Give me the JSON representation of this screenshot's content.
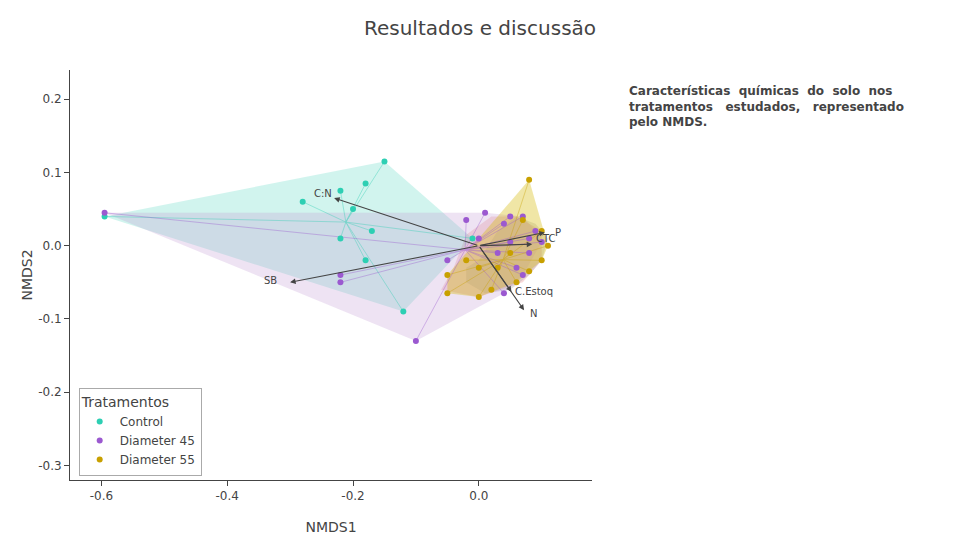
{
  "chart_data": {
    "type": "scatter",
    "title": "Resultados e discussão",
    "annotations": [
      "Características  químicas  do  solo  nos",
      "tratamentos   estudados,   representado",
      "pelo NMDS."
    ],
    "xlabel": "NMDS1",
    "ylabel": "NMDS2",
    "xlim": [
      -0.65,
      0.18
    ],
    "ylim": [
      -0.32,
      0.24
    ],
    "xticks": [
      -0.6,
      -0.4,
      -0.2,
      {
        "value": 0.0,
        "label": "0.0"
      }
    ],
    "yticks": [
      -0.3,
      -0.2,
      -0.1,
      {
        "value": 0.0,
        "label": "0.0"
      },
      0.1,
      0.2
    ],
    "grid": false,
    "legend": "lower left",
    "legend_title": "Tratamentos",
    "series": [
      {
        "name": "Control",
        "color": "#2dcfb3",
        "marker": "circle",
        "x": [
          -0.595,
          -0.01,
          -0.18,
          -0.22,
          -0.15,
          -0.18,
          -0.22,
          -0.28,
          -0.12,
          -0.17,
          -0.2
        ],
        "y": [
          0.04,
          0.01,
          -0.02,
          0.01,
          0.115,
          0.085,
          0.075,
          0.06,
          -0.09,
          0.02,
          0.05
        ],
        "centroid": {
          "x": -0.2113636,
          "y": 0.0322727
        },
        "hull": {
          "color": "#2dcfb3",
          "x": [
            -0.595,
            -0.12,
            -0.01,
            -0.15
          ],
          "y": [
            0.04,
            -0.09,
            0.01,
            0.115
          ]
        }
      },
      {
        "name": "Diameter 45",
        "color": "#9b59d0",
        "marker": "circle",
        "x": [
          -0.595,
          -0.22,
          -0.22,
          -0.1,
          0.04,
          0.06,
          0.08,
          0.09,
          0.1,
          0.08,
          0.05,
          0.03,
          -0.05,
          0.0,
          -0.02,
          0.01,
          0.04,
          0.05,
          0.07,
          0.07
        ],
        "y": [
          0.045,
          -0.04,
          -0.05,
          -0.13,
          -0.065,
          -0.03,
          0.01,
          0.02,
          0.005,
          -0.01,
          0.005,
          -0.01,
          -0.02,
          0.01,
          0.035,
          0.045,
          0.03,
          0.04,
          0.04,
          -0.04
        ],
        "centroid": {
          "x": -0.02175,
          "y": -0.0055
        },
        "hull": {
          "color": "#c39bd3",
          "x": [
            -0.595,
            -0.1,
            0.04,
            0.07,
            0.1,
            0.09,
            0.07,
            0.01
          ],
          "y": [
            0.045,
            -0.13,
            -0.065,
            -0.04,
            0.005,
            0.02,
            0.04,
            0.045
          ]
        }
      },
      {
        "name": "Diameter 55",
        "color": "#c8a000",
        "marker": "circle",
        "x": [
          -0.05,
          0.0,
          0.02,
          0.06,
          0.08,
          0.1,
          0.11,
          0.1,
          0.08,
          0.07,
          0.05,
          0.03,
          0.0,
          -0.02,
          -0.05
        ],
        "y": [
          -0.065,
          -0.07,
          -0.06,
          -0.05,
          -0.035,
          -0.02,
          0.0,
          0.02,
          0.09,
          0.035,
          -0.01,
          -0.03,
          -0.03,
          -0.02,
          -0.04
        ],
        "centroid": {
          "x": 0.0386667,
          "y": -0.019
        },
        "hull": {
          "color": "#d4b800",
          "x": [
            -0.05,
            0.0,
            0.06,
            0.1,
            0.11,
            0.08,
            -0.05
          ],
          "y": [
            -0.065,
            -0.07,
            -0.05,
            -0.02,
            0.0,
            0.09,
            -0.04
          ]
        }
      }
    ],
    "areas": [
      {
        "color": "#f0a0a0",
        "x": [
          -0.06,
          0.0,
          0.07,
          0.1,
          0.1,
          0.06,
          0.02,
          -0.02,
          -0.04,
          -0.06
        ],
        "y": [
          -0.06,
          -0.07,
          -0.05,
          -0.02,
          0.02,
          0.04,
          0.04,
          0.015,
          -0.03,
          -0.06
        ]
      },
      {
        "color": "#999999",
        "x": [
          -0.02,
          0.0,
          0.03,
          0.06,
          0.09,
          0.11,
          0.1,
          0.08,
          0.05,
          0.01,
          -0.02,
          -0.02
        ],
        "y": [
          -0.03,
          -0.02,
          0.02,
          0.04,
          0.03,
          0.01,
          -0.02,
          -0.04,
          -0.06,
          -0.065,
          -0.05,
          -0.03
        ]
      }
    ],
    "arrow_origin": [
      0.0,
      0.0
    ],
    "arrows": [
      {
        "x": -0.23,
        "y": 0.065,
        "label": "C:N",
        "label_x": -0.265,
        "label_y": 0.072
      },
      {
        "x": -0.3,
        "y": -0.05,
        "label": "SB",
        "label_x": -0.345,
        "label_y": -0.048
      },
      {
        "x": 0.085,
        "y": 0.002,
        "label": "CTC",
        "label_x": 0.088,
        "label_y": 0.01
      },
      {
        "x": 0.105,
        "y": 0.018,
        "label": "P",
        "label_x": 0.118,
        "label_y": 0.018
      },
      {
        "x": 0.052,
        "y": -0.063,
        "label": "C.Estoq",
        "label_x": 0.055,
        "label_y": -0.062
      },
      {
        "x": 0.072,
        "y": -0.088,
        "label": "N",
        "label_x": 0.078,
        "label_y": -0.092
      }
    ]
  }
}
